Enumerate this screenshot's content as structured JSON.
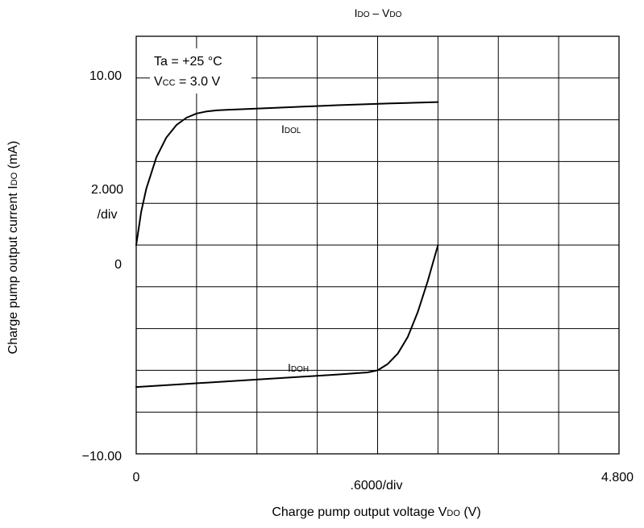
{
  "chart_data": {
    "type": "line",
    "title": {
      "main": "I",
      "sub1": "DO",
      "sep": " – V",
      "sub2": "DO"
    },
    "xlabel": {
      "pre": "Charge pump output voltage V",
      "sub": "DO",
      "post": " (V)"
    },
    "ylabel": {
      "pre": "Charge pump output current I",
      "sub": "DO",
      "post": " (mA)"
    },
    "xlim": [
      0,
      4.8
    ],
    "ylim": [
      -10,
      10
    ],
    "grid": true,
    "x_ticks": [
      {
        "value": 0,
        "label": "0"
      },
      {
        "value": 4.8,
        "label": "4.800"
      }
    ],
    "x_div_label": ".6000/div",
    "y_ticks": [
      {
        "value": 10,
        "label": "10.00"
      },
      {
        "value": 0,
        "label": "0"
      },
      {
        "value": -10,
        "label": "−10.00"
      }
    ],
    "y_div_label": [
      "2.000",
      "/div"
    ],
    "conditions": {
      "line1": "Ta = +25 °C",
      "line2": {
        "pre": "V",
        "sub": "CC",
        "post": " = 3.0 V"
      }
    },
    "series": [
      {
        "name": {
          "main": "I",
          "sub": "DOL"
        },
        "x": [
          0,
          0.05,
          0.1,
          0.2,
          0.3,
          0.4,
          0.5,
          0.6,
          0.7,
          0.8,
          0.9,
          1.0,
          1.5,
          2.0,
          2.5,
          3.0
        ],
        "y": [
          0,
          1.6,
          2.7,
          4.2,
          5.15,
          5.75,
          6.1,
          6.3,
          6.4,
          6.45,
          6.48,
          6.5,
          6.6,
          6.7,
          6.78,
          6.85
        ]
      },
      {
        "name": {
          "main": "I",
          "sub": "DOH"
        },
        "x": [
          0,
          0.5,
          1.0,
          1.5,
          2.0,
          2.3,
          2.4,
          2.5,
          2.6,
          2.7,
          2.8,
          2.9,
          3.0
        ],
        "y": [
          -6.8,
          -6.65,
          -6.5,
          -6.35,
          -6.2,
          -6.1,
          -6.0,
          -5.7,
          -5.2,
          -4.4,
          -3.2,
          -1.7,
          0
        ]
      }
    ]
  }
}
